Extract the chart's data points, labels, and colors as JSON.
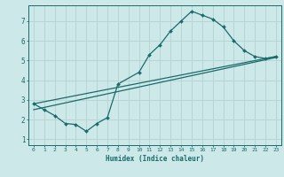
{
  "xlabel": "Humidex (Indice chaleur)",
  "bg_color": "#cce8e8",
  "grid_color": "#b8d4d4",
  "line_color": "#1a6b6b",
  "line1_x": [
    0,
    1,
    2,
    3,
    4,
    5,
    6,
    7,
    8,
    10,
    11,
    12,
    13,
    14,
    15,
    16,
    17,
    18,
    19,
    20,
    21,
    22,
    23
  ],
  "line1_y": [
    2.8,
    2.5,
    2.2,
    1.8,
    1.75,
    1.4,
    1.8,
    2.1,
    3.8,
    4.4,
    5.3,
    5.8,
    6.5,
    7.0,
    7.5,
    7.3,
    7.1,
    6.7,
    6.0,
    5.5,
    5.2,
    5.1,
    5.2
  ],
  "line2_x": [
    0,
    23
  ],
  "line2_y": [
    2.8,
    5.2
  ],
  "line3_x": [
    0,
    23
  ],
  "line3_y": [
    2.5,
    5.15
  ],
  "xlim": [
    -0.5,
    23.5
  ],
  "ylim": [
    0.7,
    7.8
  ],
  "yticks": [
    1,
    2,
    3,
    4,
    5,
    6,
    7
  ],
  "xticks": [
    0,
    1,
    2,
    3,
    4,
    5,
    6,
    7,
    8,
    9,
    10,
    11,
    12,
    13,
    14,
    15,
    16,
    17,
    18,
    19,
    20,
    21,
    22,
    23
  ]
}
